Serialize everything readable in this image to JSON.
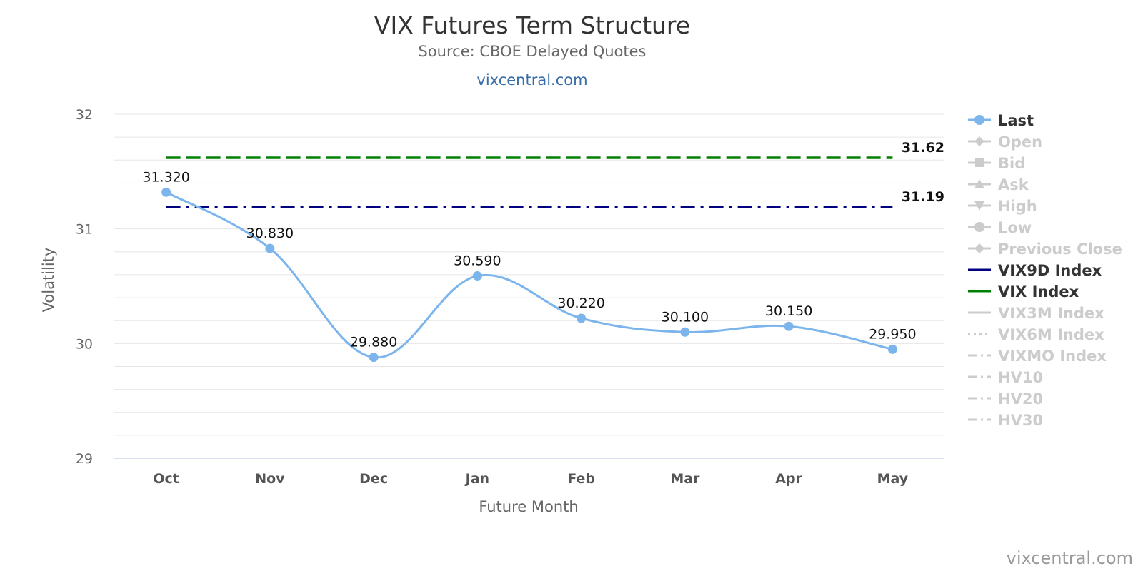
{
  "chart_data": {
    "type": "line",
    "title": "VIX Futures Term Structure",
    "subtitle": "Source: CBOE Delayed Quotes",
    "subtitle_link": "vixcentral.com",
    "xlabel": "Future Month",
    "ylabel": "Volatility",
    "categories": [
      "Oct",
      "Nov",
      "Dec",
      "Jan",
      "Feb",
      "Mar",
      "Apr",
      "May"
    ],
    "ylim": [
      29,
      32
    ],
    "y_ticks": [
      "29",
      "30",
      "31",
      "32"
    ],
    "grid": true,
    "legend_position": "right",
    "series": [
      {
        "name": "Last",
        "values": [
          31.32,
          30.83,
          29.88,
          30.59,
          30.22,
          30.1,
          30.15,
          29.95
        ],
        "labels": [
          "31.320",
          "30.830",
          "29.880",
          "30.590",
          "30.220",
          "30.100",
          "30.150",
          "29.950"
        ],
        "color": "#7cb5ec",
        "smooth": true
      },
      {
        "name": "VIX Index",
        "value": 31.62,
        "label": "31.62",
        "color": "#008000",
        "dash": "dash"
      },
      {
        "name": "VIX9D Index",
        "value": 31.19,
        "label": "31.19",
        "color": "#000080",
        "dash": "dashdot"
      }
    ],
    "legend": [
      {
        "name": "Last",
        "marker": "circle",
        "line": "solid",
        "active": true,
        "color": "#7cb5ec"
      },
      {
        "name": "Open",
        "marker": "diamond",
        "line": "solid",
        "active": false
      },
      {
        "name": "Bid",
        "marker": "square",
        "line": "solid",
        "active": false
      },
      {
        "name": "Ask",
        "marker": "triangle",
        "line": "solid",
        "active": false
      },
      {
        "name": "High",
        "marker": "triangle-down",
        "line": "solid",
        "active": false
      },
      {
        "name": "Low",
        "marker": "circle",
        "line": "solid",
        "active": false
      },
      {
        "name": "Previous Close",
        "marker": "diamond",
        "line": "solid",
        "active": false
      },
      {
        "name": "VIX9D Index",
        "marker": "none",
        "line": "solid",
        "active": true,
        "color": "#000080"
      },
      {
        "name": "VIX Index",
        "marker": "none",
        "line": "solid",
        "active": true,
        "color": "#008000"
      },
      {
        "name": "VIX3M Index",
        "marker": "none",
        "line": "solid",
        "active": false
      },
      {
        "name": "VIX6M Index",
        "marker": "none",
        "line": "dotted",
        "active": false
      },
      {
        "name": "VIXMO Index",
        "marker": "none",
        "line": "dashdot",
        "active": false
      },
      {
        "name": "HV10",
        "marker": "none",
        "line": "dashdot",
        "active": false
      },
      {
        "name": "HV20",
        "marker": "none",
        "line": "dashdot",
        "active": false
      },
      {
        "name": "HV30",
        "marker": "none",
        "line": "dashdot",
        "active": false
      }
    ],
    "inactive_color": "#cccccc",
    "grid_color": "#e6e6e6"
  },
  "credit": "vixcentral.com"
}
